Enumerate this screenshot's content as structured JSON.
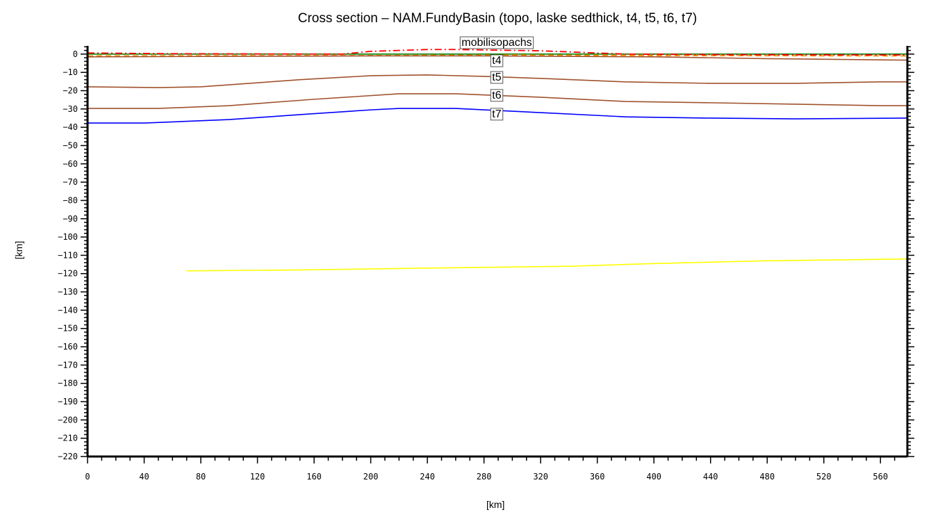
{
  "chart_data": {
    "type": "line",
    "title": "Cross section – NAM.FundyBasin (topo, laske sedthick, t4, t5, t6, t7)",
    "xlabel": "[km]",
    "ylabel": "[km]",
    "xlim": [
      0,
      579
    ],
    "ylim": [
      -220,
      4.5
    ],
    "xticks": [
      0,
      40,
      80,
      120,
      160,
      200,
      240,
      280,
      320,
      360,
      400,
      440,
      480,
      520,
      560
    ],
    "yticks": [
      0,
      -10,
      -20,
      -30,
      -40,
      -50,
      -60,
      -70,
      -80,
      -90,
      -100,
      -110,
      -120,
      -130,
      -140,
      -150,
      -160,
      -170,
      -180,
      -190,
      -200,
      -210,
      -220
    ],
    "grid": false,
    "series": [
      {
        "name": "topo",
        "color": "#008000",
        "style": "solid",
        "x": [
          0,
          579
        ],
        "y": [
          0,
          0
        ]
      },
      {
        "name": "laske sedthick",
        "color": "#ff8c00",
        "style": "dashed",
        "x": [
          0,
          200,
          300,
          400,
          579
        ],
        "y": [
          -1,
          -0.8,
          -0.5,
          -0.8,
          -1
        ]
      },
      {
        "name": "mobilisopachs",
        "color": "#ff0000",
        "style": "dashdot",
        "x": [
          0,
          60,
          180,
          200,
          240,
          260,
          320,
          380,
          440,
          579
        ],
        "y": [
          0.6,
          0.2,
          0,
          1.5,
          2.5,
          2.5,
          1.8,
          0,
          -0.3,
          -0.5
        ],
        "label_at": 289
      },
      {
        "name": "t4",
        "color": "#a0522d",
        "style": "solid",
        "x": [
          0,
          200,
          280,
          400,
          480,
          579
        ],
        "y": [
          -1.5,
          -1,
          -1,
          -1.5,
          -2.5,
          -3.3
        ],
        "label_at": 289
      },
      {
        "name": "t5",
        "color": "#a0522d",
        "style": "solid",
        "x": [
          0,
          50,
          80,
          150,
          200,
          240,
          280,
          320,
          380,
          440,
          500,
          560,
          579
        ],
        "y": [
          -17.9,
          -18.3,
          -17.9,
          -14,
          -11.8,
          -11.4,
          -12.2,
          -13.3,
          -15.2,
          -16,
          -16,
          -15.2,
          -15.2
        ],
        "label_at": 289
      },
      {
        "name": "t6",
        "color": "#a0522d",
        "style": "solid",
        "x": [
          0,
          50,
          100,
          160,
          220,
          260,
          320,
          380,
          440,
          500,
          560,
          579
        ],
        "y": [
          -29.7,
          -29.7,
          -28.2,
          -24.7,
          -21.7,
          -21.7,
          -23.6,
          -25.9,
          -26.6,
          -27.4,
          -28.2,
          -28.2
        ],
        "label_at": 289
      },
      {
        "name": "t7",
        "color": "#0000ff",
        "style": "solid",
        "x": [
          0,
          40,
          100,
          150,
          200,
          220,
          260,
          320,
          380,
          440,
          500,
          579
        ],
        "y": [
          -37.7,
          -37.7,
          -35.8,
          -33.1,
          -30.5,
          -29.7,
          -29.7,
          -32,
          -34.3,
          -35,
          -35.4,
          -35
        ],
        "label_at": 289
      },
      {
        "name": "",
        "color": "#ffff00",
        "style": "solid",
        "x": [
          70,
          150,
          240,
          340,
          400,
          480,
          579
        ],
        "y": [
          -118.5,
          -118,
          -117,
          -116,
          -114.5,
          -113,
          -112
        ]
      }
    ]
  }
}
